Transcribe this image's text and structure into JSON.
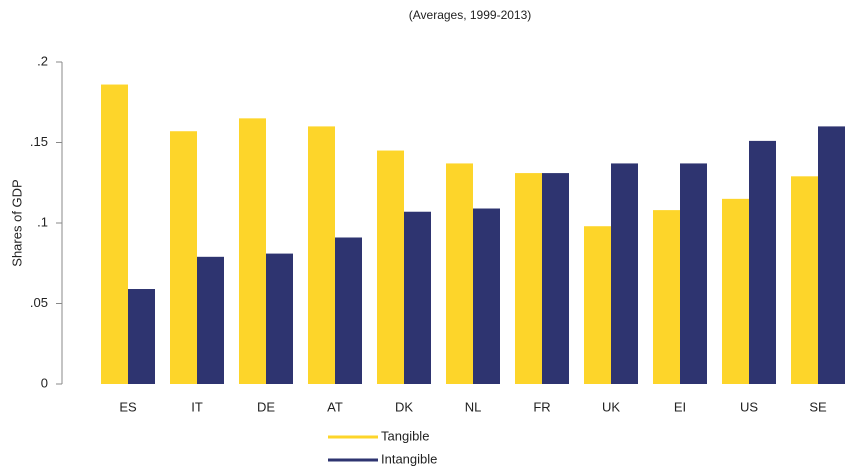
{
  "chart_data": {
    "type": "bar",
    "subtitle": "(Averages, 1999-2013)",
    "y_label": "Shares of GDP",
    "categories": [
      "ES",
      "IT",
      "DE",
      "AT",
      "DK",
      "NL",
      "FR",
      "UK",
      "EI",
      "US",
      "SE"
    ],
    "series": [
      {
        "name": "Tangible",
        "color": "#fdd52a",
        "values": [
          0.186,
          0.157,
          0.165,
          0.16,
          0.145,
          0.137,
          0.131,
          0.098,
          0.108,
          0.115,
          0.129
        ]
      },
      {
        "name": "Intangible",
        "color": "#2e3470",
        "values": [
          0.059,
          0.079,
          0.081,
          0.091,
          0.107,
          0.109,
          0.131,
          0.137,
          0.137,
          0.151,
          0.16
        ]
      }
    ],
    "ylim": [
      0,
      0.2
    ],
    "yticks": [
      0,
      {
        "value": 0.05,
        "label": ".05"
      },
      {
        "value": 0.1,
        "label": ".1"
      },
      {
        "value": 0.15,
        "label": ".15"
      },
      {
        "value": 0.2,
        "label": ".2"
      }
    ],
    "legend": "bottom"
  }
}
